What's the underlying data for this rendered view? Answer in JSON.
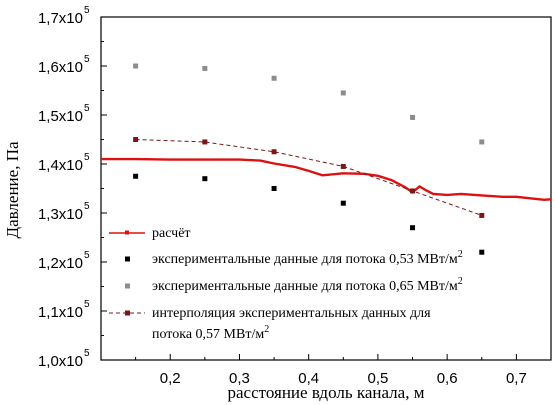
{
  "chart_data": {
    "type": "line",
    "xlabel": "расстояние вдоль канала, м",
    "ylabel": "Давление, Па",
    "xlim": [
      0.1,
      0.75
    ],
    "ylim": [
      100000,
      170000
    ],
    "xticks": [
      0.2,
      0.3,
      0.4,
      0.5,
      0.6,
      0.7
    ],
    "xtick_labels": [
      "0,2",
      "0,3",
      "0,4",
      "0,5",
      "0,6",
      "0,7"
    ],
    "yticks": [
      100000,
      110000,
      120000,
      130000,
      140000,
      150000,
      160000,
      170000
    ],
    "ytick_labels": [
      {
        "mantissa": "1,0x10",
        "exp": "5"
      },
      {
        "mantissa": "1,1x10",
        "exp": "5"
      },
      {
        "mantissa": "1,2x10",
        "exp": "5"
      },
      {
        "mantissa": "1,3x10",
        "exp": "5"
      },
      {
        "mantissa": "1,4x10",
        "exp": "5"
      },
      {
        "mantissa": "1,5x10",
        "exp": "5"
      },
      {
        "mantissa": "1,6x10",
        "exp": "5"
      },
      {
        "mantissa": "1,7x10",
        "exp": "5"
      }
    ],
    "grid": false,
    "legend_position": "bottom-left",
    "series": [
      {
        "name": "расчёт",
        "style": "line",
        "color": "#dd1111",
        "x": [
          0.1,
          0.15,
          0.2,
          0.25,
          0.3,
          0.33,
          0.35,
          0.38,
          0.4,
          0.42,
          0.45,
          0.48,
          0.5,
          0.52,
          0.54,
          0.55,
          0.56,
          0.57,
          0.58,
          0.6,
          0.62,
          0.65,
          0.68,
          0.7,
          0.72,
          0.74,
          0.75
        ],
        "y": [
          141000,
          141000,
          140900,
          140900,
          140900,
          140700,
          140100,
          139400,
          138600,
          137700,
          138100,
          138000,
          137600,
          136700,
          135200,
          134200,
          135400,
          134600,
          133900,
          133700,
          133900,
          133600,
          133300,
          133300,
          133000,
          132700,
          132800
        ]
      },
      {
        "name": "экспериментальные данные для потока 0,53 МВт/м",
        "name_sup": "2",
        "style": "markers",
        "color": "#000000",
        "x": [
          0.15,
          0.25,
          0.35,
          0.45,
          0.55,
          0.65
        ],
        "y": [
          137500,
          137000,
          135000,
          132000,
          127000,
          122000
        ]
      },
      {
        "name": "экспериментальные данные для потока 0,65 МВт/м",
        "name_sup": "2",
        "style": "markers",
        "color": "#8c8c8c",
        "x": [
          0.15,
          0.25,
          0.35,
          0.45,
          0.55,
          0.65
        ],
        "y": [
          160000,
          159500,
          157500,
          154500,
          149500,
          144500
        ]
      },
      {
        "name": "интерполяция экспериментальных данных для",
        "name_line2": "потока 0,57 МВт/м",
        "name_sup": "2",
        "style": "dashed-markers",
        "color": "#7a1818",
        "x": [
          0.15,
          0.25,
          0.35,
          0.45,
          0.55,
          0.65
        ],
        "y": [
          145000,
          144500,
          142500,
          139500,
          134500,
          129500
        ]
      }
    ]
  }
}
